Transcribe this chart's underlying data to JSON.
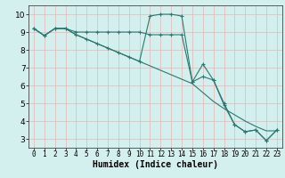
{
  "xlabel": "Humidex (Indice chaleur)",
  "xlim": [
    -0.5,
    23.5
  ],
  "ylim": [
    2.5,
    10.5
  ],
  "xticks": [
    0,
    1,
    2,
    3,
    4,
    5,
    6,
    7,
    8,
    9,
    10,
    11,
    12,
    13,
    14,
    15,
    16,
    17,
    18,
    19,
    20,
    21,
    22,
    23
  ],
  "yticks": [
    3,
    4,
    5,
    6,
    7,
    8,
    9,
    10
  ],
  "bg_color": "#d4f0ee",
  "grid_color": "#e8b4b4",
  "line_color": "#2a7870",
  "line1_x": [
    0,
    1,
    2,
    3,
    4,
    5,
    6,
    7,
    8,
    9,
    10,
    11,
    12,
    13,
    14,
    15,
    16,
    17,
    18,
    19,
    20,
    21,
    22,
    23
  ],
  "line1_y": [
    9.2,
    8.8,
    9.2,
    9.2,
    9.0,
    9.0,
    9.0,
    9.0,
    9.0,
    9.0,
    9.0,
    8.85,
    8.85,
    8.85,
    8.85,
    6.2,
    6.5,
    6.3,
    5.0,
    3.8,
    3.4,
    3.5,
    2.9,
    3.5
  ],
  "line2_x": [
    0,
    1,
    2,
    3,
    4,
    5,
    6,
    7,
    8,
    9,
    10,
    11,
    12,
    13,
    14,
    15,
    16,
    17,
    18,
    19,
    20,
    21,
    22,
    23
  ],
  "line2_y": [
    9.2,
    8.8,
    9.2,
    9.2,
    8.85,
    8.6,
    8.35,
    8.1,
    7.85,
    7.6,
    7.35,
    7.1,
    6.85,
    6.6,
    6.35,
    6.1,
    5.6,
    5.1,
    4.7,
    4.35,
    4.0,
    3.7,
    3.45,
    3.45
  ],
  "line3_x": [
    0,
    1,
    2,
    3,
    4,
    5,
    6,
    7,
    8,
    9,
    10,
    11,
    12,
    13,
    14,
    15,
    16,
    17,
    18,
    19,
    20,
    21,
    22,
    23
  ],
  "line3_y": [
    9.2,
    8.8,
    9.2,
    9.2,
    8.85,
    8.6,
    8.35,
    8.1,
    7.85,
    7.6,
    7.35,
    9.9,
    10.0,
    10.0,
    9.9,
    6.2,
    7.2,
    6.3,
    4.9,
    3.8,
    3.4,
    3.5,
    2.9,
    3.5
  ]
}
